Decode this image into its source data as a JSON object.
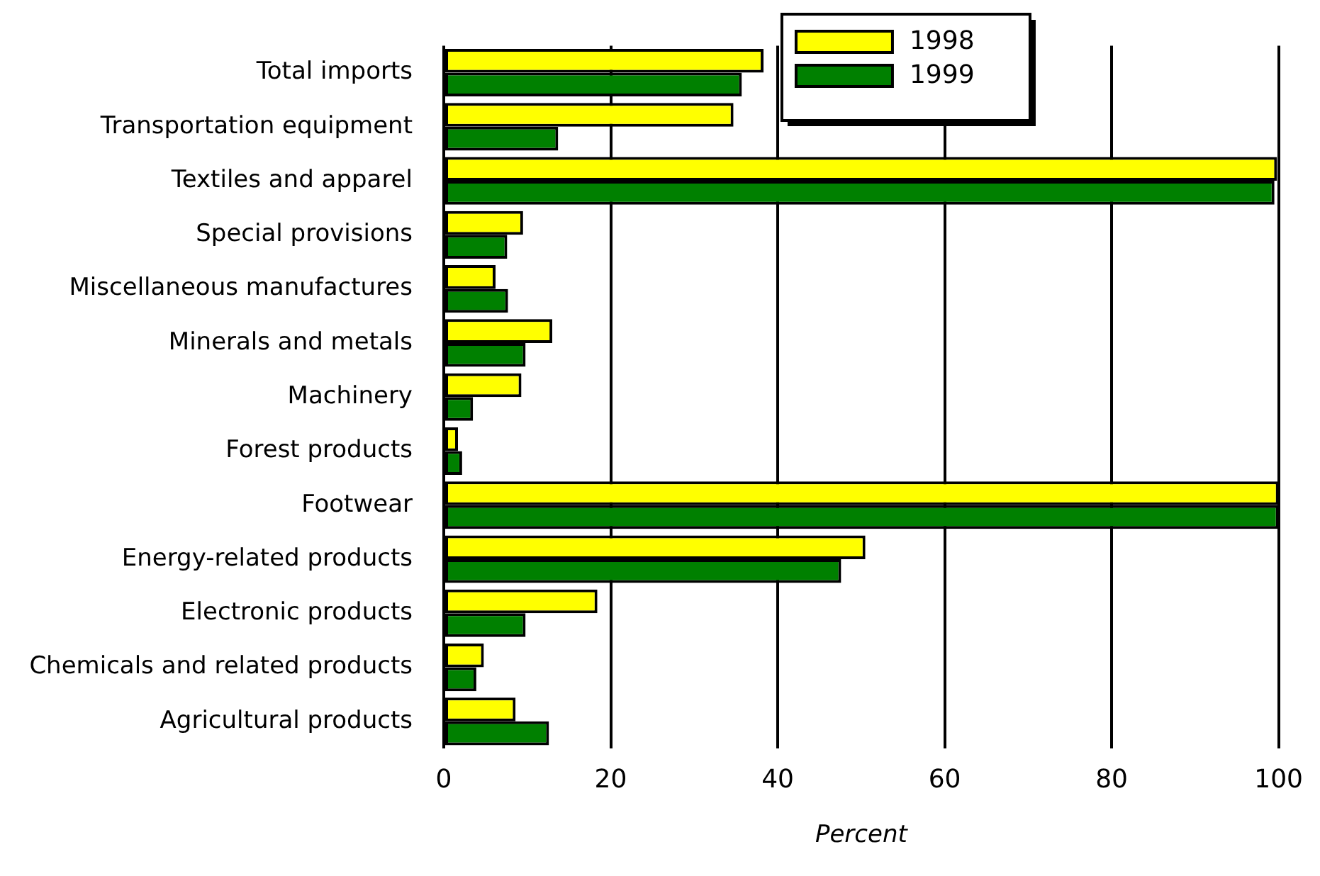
{
  "chart_data": {
    "type": "bar",
    "orientation": "horizontal",
    "xlabel": "Percent",
    "categories": [
      "Total imports",
      "Transportation equipment",
      "Textiles and apparel",
      "Special provisions",
      "Miscellaneous manufactures",
      "Minerals and metals",
      "Machinery",
      "Forest products",
      "Footwear",
      "Energy-related products",
      "Electronic products",
      "Chemicals and related products",
      "Agricultural products"
    ],
    "series": [
      {
        "name": "1998",
        "color": "#ffff00",
        "values": [
          38.3,
          34.7,
          99.8,
          9.5,
          6.2,
          13.0,
          9.3,
          1.7,
          100,
          50.5,
          18.4,
          4.8,
          8.6
        ]
      },
      {
        "name": "1999",
        "color": "#008000",
        "values": [
          35.7,
          13.7,
          99.5,
          7.6,
          7.7,
          9.8,
          3.5,
          2.2,
          100,
          47.6,
          9.8,
          3.9,
          12.6
        ]
      }
    ],
    "xlim": [
      0,
      100
    ],
    "xticks": [
      0,
      20,
      40,
      60,
      80,
      100
    ],
    "grid": "x",
    "legend": "top"
  }
}
